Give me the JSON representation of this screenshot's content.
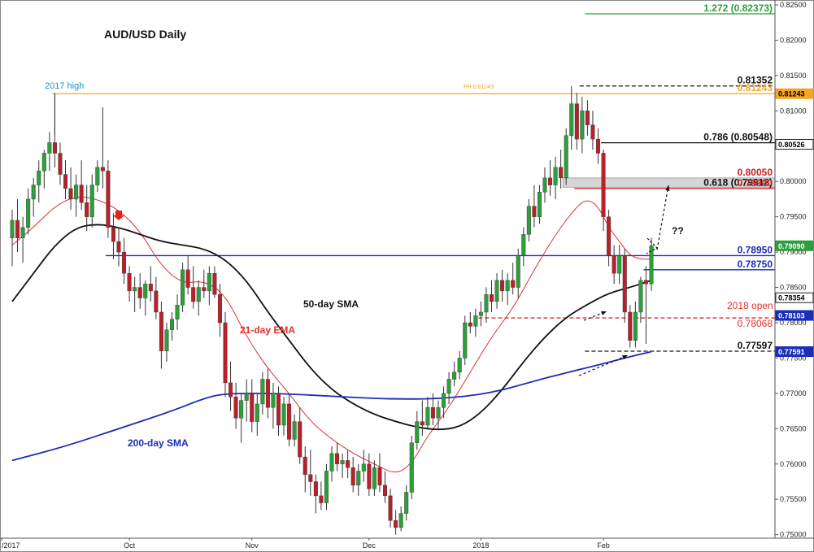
{
  "chart_data": {
    "type": "candlestick",
    "title": "AUD/USD Daily",
    "ylim": [
      0.7495,
      0.825
    ],
    "y_ticks": [
      0.75,
      0.755,
      0.76,
      0.765,
      0.77,
      0.775,
      0.78,
      0.785,
      0.79,
      0.795,
      0.8,
      0.805,
      0.81,
      0.815,
      0.82,
      0.825
    ],
    "y_tick_labels": [
      "0.75000",
      "0.75500",
      "0.76000",
      "0.76500",
      "0.77000",
      "0.77500",
      "0.78000",
      "0.78500",
      "0.79000",
      "0.79500",
      "0.80000",
      "0.80500",
      "0.81000",
      "0.81500",
      "0.82000",
      "0.82500"
    ],
    "x_labels": [
      {
        "label": "/2017",
        "index": 0
      },
      {
        "label": "Oct",
        "index": 22
      },
      {
        "label": "Nov",
        "index": 45
      },
      {
        "label": "Dec",
        "index": 67
      },
      {
        "label": "2018",
        "index": 88
      },
      {
        "label": "Feb",
        "index": 111
      }
    ],
    "candles": [
      [
        0.792,
        0.796,
        0.788,
        0.7945
      ],
      [
        0.7945,
        0.7975,
        0.79,
        0.792
      ],
      [
        0.792,
        0.795,
        0.7885,
        0.7935
      ],
      [
        0.7935,
        0.799,
        0.7925,
        0.7975
      ],
      [
        0.7975,
        0.8005,
        0.795,
        0.7995
      ],
      [
        0.7995,
        0.803,
        0.797,
        0.8015
      ],
      [
        0.8015,
        0.8045,
        0.799,
        0.804
      ],
      [
        0.804,
        0.807,
        0.8015,
        0.8055
      ],
      [
        0.8055,
        0.8125,
        0.802,
        0.804
      ],
      [
        0.804,
        0.8055,
        0.7995,
        0.801
      ],
      [
        0.801,
        0.803,
        0.7975,
        0.799
      ],
      [
        0.799,
        0.802,
        0.796,
        0.7975
      ],
      [
        0.7975,
        0.801,
        0.795,
        0.7995
      ],
      [
        0.7995,
        0.803,
        0.796,
        0.797
      ],
      [
        0.797,
        0.7995,
        0.793,
        0.795
      ],
      [
        0.795,
        0.801,
        0.7935,
        0.7995
      ],
      [
        0.7995,
        0.803,
        0.7985,
        0.802
      ],
      [
        0.802,
        0.8105,
        0.799,
        0.8015
      ],
      [
        0.8015,
        0.803,
        0.792,
        0.7935
      ],
      [
        0.7935,
        0.7955,
        0.789,
        0.7915
      ],
      [
        0.7915,
        0.7935,
        0.788,
        0.79
      ],
      [
        0.79,
        0.792,
        0.7855,
        0.787
      ],
      [
        0.787,
        0.788,
        0.783,
        0.7845
      ],
      [
        0.7845,
        0.7865,
        0.7815,
        0.785
      ],
      [
        0.785,
        0.787,
        0.782,
        0.7835
      ],
      [
        0.7835,
        0.786,
        0.781,
        0.7855
      ],
      [
        0.7855,
        0.788,
        0.783,
        0.7845
      ],
      [
        0.7845,
        0.7865,
        0.7805,
        0.7815
      ],
      [
        0.7815,
        0.783,
        0.7735,
        0.776
      ],
      [
        0.776,
        0.78,
        0.7745,
        0.779
      ],
      [
        0.779,
        0.7815,
        0.7775,
        0.7805
      ],
      [
        0.7805,
        0.784,
        0.779,
        0.7825
      ],
      [
        0.7825,
        0.7885,
        0.7815,
        0.7875
      ],
      [
        0.7875,
        0.7895,
        0.784,
        0.785
      ],
      [
        0.785,
        0.788,
        0.782,
        0.783
      ],
      [
        0.783,
        0.786,
        0.781,
        0.785
      ],
      [
        0.785,
        0.7875,
        0.7835,
        0.7845
      ],
      [
        0.7845,
        0.788,
        0.7825,
        0.787
      ],
      [
        0.787,
        0.788,
        0.7835,
        0.784
      ],
      [
        0.784,
        0.7855,
        0.778,
        0.78
      ],
      [
        0.78,
        0.7815,
        0.7695,
        0.7715
      ],
      [
        0.7715,
        0.7745,
        0.7675,
        0.7695
      ],
      [
        0.7695,
        0.7715,
        0.765,
        0.7665
      ],
      [
        0.7665,
        0.77,
        0.763,
        0.769
      ],
      [
        0.769,
        0.772,
        0.766,
        0.77
      ],
      [
        0.77,
        0.772,
        0.7645,
        0.766
      ],
      [
        0.766,
        0.77,
        0.764,
        0.7685
      ],
      [
        0.7685,
        0.773,
        0.767,
        0.772
      ],
      [
        0.772,
        0.7735,
        0.7665,
        0.768
      ],
      [
        0.768,
        0.7715,
        0.765,
        0.77
      ],
      [
        0.77,
        0.771,
        0.764,
        0.7655
      ],
      [
        0.7655,
        0.7695,
        0.764,
        0.7685
      ],
      [
        0.7685,
        0.77,
        0.7625,
        0.7635
      ],
      [
        0.7635,
        0.767,
        0.7625,
        0.766
      ],
      [
        0.766,
        0.768,
        0.76,
        0.761
      ],
      [
        0.761,
        0.7625,
        0.756,
        0.7585
      ],
      [
        0.7585,
        0.762,
        0.7555,
        0.7575
      ],
      [
        0.7575,
        0.7585,
        0.753,
        0.7555
      ],
      [
        0.7555,
        0.7575,
        0.7535,
        0.7545
      ],
      [
        0.7545,
        0.76,
        0.7535,
        0.759
      ],
      [
        0.759,
        0.7625,
        0.7575,
        0.7615
      ],
      [
        0.7615,
        0.763,
        0.759,
        0.76
      ],
      [
        0.76,
        0.7615,
        0.758,
        0.7605
      ],
      [
        0.7605,
        0.762,
        0.758,
        0.7595
      ],
      [
        0.7595,
        0.761,
        0.756,
        0.757
      ],
      [
        0.757,
        0.76,
        0.7555,
        0.759
      ],
      [
        0.759,
        0.762,
        0.7575,
        0.76
      ],
      [
        0.76,
        0.7615,
        0.7555,
        0.7565
      ],
      [
        0.7565,
        0.7605,
        0.7555,
        0.7595
      ],
      [
        0.7595,
        0.7615,
        0.756,
        0.757
      ],
      [
        0.757,
        0.759,
        0.7545,
        0.7555
      ],
      [
        0.7555,
        0.7565,
        0.751,
        0.752
      ],
      [
        0.752,
        0.7535,
        0.75,
        0.751
      ],
      [
        0.751,
        0.754,
        0.7505,
        0.753
      ],
      [
        0.753,
        0.757,
        0.752,
        0.756
      ],
      [
        0.756,
        0.764,
        0.755,
        0.763
      ],
      [
        0.763,
        0.7675,
        0.762,
        0.766
      ],
      [
        0.766,
        0.769,
        0.764,
        0.7655
      ],
      [
        0.7655,
        0.7695,
        0.765,
        0.768
      ],
      [
        0.768,
        0.77,
        0.7655,
        0.7665
      ],
      [
        0.7665,
        0.769,
        0.765,
        0.768
      ],
      [
        0.768,
        0.771,
        0.7665,
        0.77
      ],
      [
        0.77,
        0.773,
        0.7685,
        0.772
      ],
      [
        0.772,
        0.7745,
        0.771,
        0.773
      ],
      [
        0.773,
        0.776,
        0.772,
        0.775
      ],
      [
        0.775,
        0.781,
        0.774,
        0.78
      ],
      [
        0.78,
        0.7815,
        0.7785,
        0.7795
      ],
      [
        0.7795,
        0.782,
        0.778,
        0.781
      ],
      [
        0.781,
        0.783,
        0.7795,
        0.7815
      ],
      [
        0.7815,
        0.785,
        0.78,
        0.784
      ],
      [
        0.784,
        0.786,
        0.7815,
        0.783
      ],
      [
        0.783,
        0.787,
        0.782,
        0.786
      ],
      [
        0.786,
        0.7875,
        0.783,
        0.7845
      ],
      [
        0.7845,
        0.787,
        0.7825,
        0.786
      ],
      [
        0.786,
        0.7885,
        0.784,
        0.785
      ],
      [
        0.785,
        0.7905,
        0.7835,
        0.7895
      ],
      [
        0.7895,
        0.7935,
        0.788,
        0.7925
      ],
      [
        0.7925,
        0.7975,
        0.7915,
        0.7965
      ],
      [
        0.7965,
        0.7995,
        0.7935,
        0.795
      ],
      [
        0.795,
        0.7995,
        0.794,
        0.7985
      ],
      [
        0.7985,
        0.802,
        0.797,
        0.8005
      ],
      [
        0.8005,
        0.803,
        0.798,
        0.7995
      ],
      [
        0.7995,
        0.8035,
        0.7975,
        0.802
      ],
      [
        0.802,
        0.8045,
        0.799,
        0.8005
      ],
      [
        0.8005,
        0.8075,
        0.7995,
        0.8065
      ],
      [
        0.8065,
        0.8135,
        0.8045,
        0.811
      ],
      [
        0.811,
        0.8125,
        0.8045,
        0.806
      ],
      [
        0.806,
        0.812,
        0.804,
        0.81
      ],
      [
        0.81,
        0.8115,
        0.8065,
        0.808
      ],
      [
        0.808,
        0.81,
        0.8045,
        0.806
      ],
      [
        0.806,
        0.8075,
        0.8025,
        0.804
      ],
      [
        0.804,
        0.8045,
        0.793,
        0.795
      ],
      [
        0.795,
        0.796,
        0.788,
        0.7895
      ],
      [
        0.7895,
        0.791,
        0.7855,
        0.787
      ],
      [
        0.787,
        0.791,
        0.7855,
        0.7895
      ],
      [
        0.7895,
        0.7905,
        0.78,
        0.7815
      ],
      [
        0.7815,
        0.7825,
        0.7765,
        0.7775
      ],
      [
        0.7775,
        0.783,
        0.7765,
        0.7815
      ],
      [
        0.7815,
        0.7865,
        0.78,
        0.786
      ],
      [
        0.786,
        0.788,
        0.777,
        0.7855
      ],
      [
        0.7855,
        0.792,
        0.7845,
        0.7909
      ]
    ],
    "series": [
      {
        "name": "21-day EMA",
        "color": "#e03030",
        "values": [
          [
            0,
            0.791
          ],
          [
            4,
            0.7935
          ],
          [
            8,
            0.7965
          ],
          [
            12,
            0.798
          ],
          [
            16,
            0.7975
          ],
          [
            20,
            0.796
          ],
          [
            24,
            0.793
          ],
          [
            28,
            0.788
          ],
          [
            32,
            0.7855
          ],
          [
            36,
            0.786
          ],
          [
            40,
            0.784
          ],
          [
            44,
            0.778
          ],
          [
            48,
            0.7735
          ],
          [
            52,
            0.77
          ],
          [
            56,
            0.766
          ],
          [
            60,
            0.7635
          ],
          [
            64,
            0.7615
          ],
          [
            68,
            0.76
          ],
          [
            72,
            0.7585
          ],
          [
            75,
            0.76
          ],
          [
            78,
            0.764
          ],
          [
            82,
            0.768
          ],
          [
            86,
            0.773
          ],
          [
            90,
            0.778
          ],
          [
            94,
            0.782
          ],
          [
            98,
            0.7875
          ],
          [
            102,
            0.7925
          ],
          [
            106,
            0.7965
          ],
          [
            108,
            0.7975
          ],
          [
            110,
            0.7965
          ],
          [
            112,
            0.7935
          ],
          [
            114,
            0.7915
          ],
          [
            116,
            0.7895
          ],
          [
            118,
            0.789
          ],
          [
            120,
            0.789
          ]
        ]
      },
      {
        "name": "50-day SMA",
        "color": "#111111",
        "values": [
          [
            0,
            0.783
          ],
          [
            4,
            0.787
          ],
          [
            8,
            0.791
          ],
          [
            12,
            0.7935
          ],
          [
            16,
            0.794
          ],
          [
            20,
            0.7935
          ],
          [
            24,
            0.7925
          ],
          [
            28,
            0.7915
          ],
          [
            32,
            0.791
          ],
          [
            36,
            0.7905
          ],
          [
            40,
            0.789
          ],
          [
            44,
            0.786
          ],
          [
            48,
            0.7815
          ],
          [
            52,
            0.7775
          ],
          [
            56,
            0.7735
          ],
          [
            60,
            0.7705
          ],
          [
            64,
            0.7685
          ],
          [
            68,
            0.767
          ],
          [
            72,
            0.766
          ],
          [
            76,
            0.7652
          ],
          [
            80,
            0.7648
          ],
          [
            84,
            0.7652
          ],
          [
            88,
            0.7672
          ],
          [
            92,
            0.7705
          ],
          [
            96,
            0.7745
          ],
          [
            100,
            0.778
          ],
          [
            104,
            0.7808
          ],
          [
            108,
            0.7826
          ],
          [
            112,
            0.7842
          ],
          [
            116,
            0.785
          ],
          [
            120,
            0.786
          ]
        ]
      },
      {
        "name": "200-day SMA",
        "color": "#1a2db8",
        "values": [
          [
            0,
            0.7605
          ],
          [
            10,
            0.7625
          ],
          [
            20,
            0.765
          ],
          [
            30,
            0.7675
          ],
          [
            36,
            0.7693
          ],
          [
            40,
            0.77
          ],
          [
            50,
            0.77
          ],
          [
            60,
            0.7696
          ],
          [
            70,
            0.7692
          ],
          [
            80,
            0.7692
          ],
          [
            90,
            0.77
          ],
          [
            100,
            0.7722
          ],
          [
            110,
            0.774
          ],
          [
            116,
            0.7752
          ],
          [
            120,
            0.7759
          ]
        ]
      }
    ],
    "hlines": [
      {
        "value": 0.82373,
        "label": "1.272 (0.82373)",
        "color": "#2e9e3a",
        "from": 108,
        "style": "solid"
      },
      {
        "value": 0.81352,
        "label": "0.81352",
        "color": "#111111",
        "from": 107,
        "style": "dashed"
      },
      {
        "value": 0.81243,
        "label": "0.81243",
        "color": "#f5a623",
        "from": 8,
        "style": "solid"
      },
      {
        "value": 0.80548,
        "label": "0.786 (0.80548)",
        "color": "#111111",
        "from": 111,
        "style": "solid"
      },
      {
        "value": 0.799,
        "label": "0.79900",
        "color": "#cc2222",
        "from": 106,
        "style": "solid"
      },
      {
        "value": 0.7895,
        "label": "0.78950",
        "color": "#1a2db8",
        "from": 18,
        "style": "solid"
      },
      {
        "value": 0.7875,
        "label": "0.78750",
        "color": "#1a2db8",
        "from": 119,
        "style": "solid"
      },
      {
        "value": 0.78068,
        "label": "0.78068",
        "color": "#e03030",
        "from": 88,
        "style": "dashed"
      },
      {
        "value": 0.77597,
        "label": "0.77597",
        "color": "#111111",
        "from": 108,
        "style": "dashed"
      }
    ],
    "zones": [
      {
        "from_value": 0.79918,
        "to_value": 0.8005,
        "from_index": 104,
        "fill": "#d6d6d6",
        "label_top": "0.80050",
        "label_mid": "0.618 (0.79918)"
      }
    ],
    "annotations": {
      "title": "AUD/USD Daily",
      "high_2017": "2017 high",
      "ph_label": "PH 0.81243",
      "ema_label": "21-day EMA",
      "sma50_label": "50-day SMA",
      "sma200_label": "200-day SMA",
      "open_2018": "2018 open",
      "question": "??"
    },
    "price_tags": [
      {
        "value": 0.825,
        "text": "0.82500",
        "bg": "#ffffff",
        "fg": "#222222"
      },
      {
        "value": 0.81243,
        "text": "0.81243",
        "bg": "#f5a623",
        "fg": "#000000"
      },
      {
        "value": 0.80526,
        "text": "0.80526",
        "bg": "#ffffff",
        "fg": "#000000",
        "border": "#222222"
      },
      {
        "value": 0.7909,
        "text": "0.79090",
        "bg": "#2e9e3a",
        "fg": "#ffffff"
      },
      {
        "value": 0.78354,
        "text": "0.78354",
        "bg": "#ffffff",
        "fg": "#000000",
        "border": "#222222"
      },
      {
        "value": 0.78103,
        "text": "0.78103",
        "bg": "#1a2db8",
        "fg": "#ffffff"
      },
      {
        "value": 0.77591,
        "text": "0.77591",
        "bg": "#1a2db8",
        "fg": "#ffffff"
      }
    ],
    "colors": {
      "bull": "#2e9e3a",
      "bear": "#b8202a",
      "wick": "#333333",
      "marker": "#e8201a"
    },
    "marker_index": 20
  }
}
